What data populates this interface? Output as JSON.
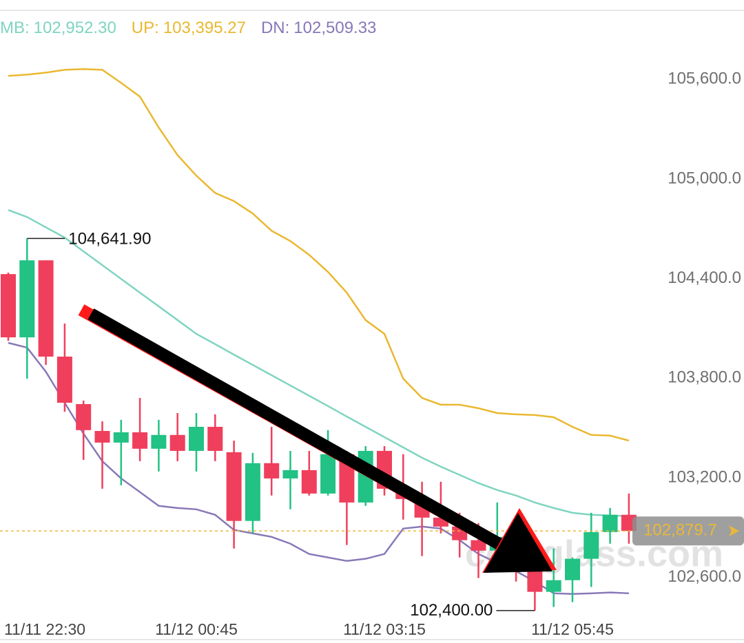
{
  "chart_data": {
    "type": "candlestick",
    "categories": [
      null,
      "11/11 22:30",
      null,
      null,
      null,
      null,
      null,
      null,
      null,
      null,
      "11/12 00:45",
      null,
      null,
      null,
      null,
      null,
      null,
      null,
      null,
      null,
      "11/12 03:15",
      null,
      null,
      null,
      null,
      null,
      null,
      null,
      null,
      null,
      "11/12 05:45",
      null,
      null,
      null
    ],
    "candles": {
      "up_color": "#22c184",
      "down_color": "#ef3f5c",
      "open": [
        104427,
        104046,
        104510,
        103930,
        103644,
        103482,
        103412,
        103474,
        103375,
        103458,
        103362,
        103507,
        103354,
        102940,
        103288,
        103196,
        103246,
        103105,
        103342,
        103051,
        103362,
        103134,
        103072,
        102960,
        102906,
        102824,
        102761,
        102844,
        102637,
        102513,
        102583,
        102712,
        102873,
        102977
      ],
      "high": [
        104436,
        104641.9,
        104510,
        104129,
        103665,
        103540,
        103549,
        103681,
        103549,
        103590,
        103590,
        103582,
        103424,
        103350,
        103507,
        103362,
        103362,
        103487,
        103362,
        103391,
        103391,
        103342,
        103176,
        103176,
        102989,
        102927,
        103051,
        102927,
        102712,
        102774,
        102720,
        102989,
        103018,
        103105
      ],
      "low": [
        104025,
        103797,
        103880,
        103598,
        103308,
        103134,
        103155,
        103300,
        103238,
        103300,
        103238,
        103300,
        102774,
        102865,
        103093,
        103010,
        103093,
        103093,
        102795,
        103031,
        103093,
        102948,
        102728,
        102865,
        102720,
        102596,
        102712,
        102575,
        102400,
        102422,
        102451,
        102542,
        102803,
        102803
      ],
      "close": [
        104046,
        104510,
        103930,
        103652,
        103487,
        103412,
        103474,
        103375,
        103458,
        103362,
        103507,
        103362,
        102940,
        103288,
        103196,
        103246,
        103105,
        103342,
        103051,
        103362,
        103134,
        103072,
        102960,
        102906,
        102824,
        102761,
        102844,
        102637,
        102513,
        102583,
        102712,
        102873,
        102977,
        102879.7
      ]
    },
    "series": [
      {
        "name": "MB:",
        "legend_value": "102,952.30",
        "color": "#7fd4c0",
        "values": [
          104813,
          104771,
          104709,
          104647,
          104564,
          104481,
          104398,
          104315,
          104233,
          104150,
          104067,
          104005,
          103942,
          103880,
          103818,
          103756,
          103694,
          103632,
          103569,
          103507,
          103445,
          103383,
          103321,
          103267,
          103217,
          103168,
          103126,
          103093,
          103051,
          103018,
          102989,
          102977,
          102973,
          102969
        ]
      },
      {
        "name": "UP:",
        "legend_value": "103,395.27",
        "color": "#eab830",
        "values": [
          105621,
          105629,
          105641,
          105658,
          105662,
          105658,
          105579,
          105496,
          105310,
          105144,
          105020,
          104916,
          104867,
          104792,
          104688,
          104626,
          104543,
          104440,
          104315,
          104150,
          104067,
          103797,
          103681,
          103640,
          103640,
          103619,
          103590,
          103582,
          103578,
          103565,
          103507,
          103458,
          103454,
          103424
        ]
      },
      {
        "name": "DN:",
        "legend_value": "102,509.33",
        "color": "#8878b8",
        "values": [
          104013,
          103984,
          103839,
          103652,
          103466,
          103300,
          103196,
          103114,
          103031,
          103018,
          103010,
          102977,
          102886,
          102865,
          102844,
          102803,
          102741,
          102720,
          102699,
          102712,
          102741,
          102894,
          102906,
          102894,
          102824,
          102741,
          102687,
          102637,
          102575,
          102504,
          102500,
          102504,
          102509,
          102504
        ]
      }
    ],
    "ylim": [
      102300,
      105900
    ],
    "yticks": [
      {
        "value": 102600,
        "label": "102,600.0"
      },
      {
        "value": 103200,
        "label": "103,200.0"
      },
      {
        "value": 103800,
        "label": "103,800.0"
      },
      {
        "value": 104400,
        "label": "104,400.0"
      },
      {
        "value": 105000,
        "label": "105,000.0"
      },
      {
        "value": 105600,
        "label": "105,600.0"
      }
    ],
    "grid": false,
    "last_price": {
      "value": 102879.7,
      "label": "102,879.7",
      "color": "#e8b83a"
    },
    "high_label": {
      "value": 104641.9,
      "label": "104,641.90"
    },
    "low_label": {
      "value": 102400,
      "label": "102,400.00"
    },
    "watermark": "coinglass.com"
  }
}
